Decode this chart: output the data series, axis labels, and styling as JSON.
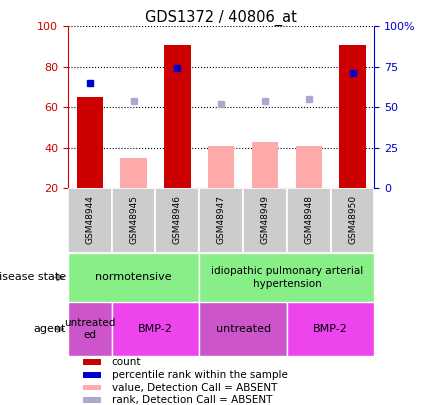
{
  "title": "GDS1372 / 40806_at",
  "samples": [
    "GSM48944",
    "GSM48945",
    "GSM48946",
    "GSM48947",
    "GSM48949",
    "GSM48948",
    "GSM48950"
  ],
  "count_values": [
    65,
    null,
    91,
    null,
    null,
    null,
    91
  ],
  "count_color": "#cc0000",
  "percentile_values": [
    65,
    null,
    74,
    null,
    null,
    null,
    71
  ],
  "percentile_color": "#0000cc",
  "absent_value_values": [
    null,
    35,
    null,
    41,
    43,
    41,
    null
  ],
  "absent_value_color": "#ffaaaa",
  "absent_rank_values": [
    null,
    54,
    null,
    52,
    54,
    55,
    null
  ],
  "absent_rank_color": "#aaaacc",
  "ylim_left": [
    20,
    100
  ],
  "ylim_right": [
    0,
    100
  ],
  "yticks_left": [
    20,
    40,
    60,
    80,
    100
  ],
  "ytick_labels_left": [
    "20",
    "40",
    "60",
    "80",
    "100"
  ],
  "ytick_labels_right": [
    "0",
    "25",
    "50",
    "75",
    "100%"
  ],
  "bar_width": 0.6,
  "sample_box_color": "#cccccc",
  "ds_colors": [
    "#88ee88",
    "#88ee88"
  ],
  "agent_colors": [
    "#cc55cc",
    "#ee44ee",
    "#cc55cc",
    "#ee44ee"
  ],
  "legend_items": [
    {
      "label": "count",
      "color": "#cc0000"
    },
    {
      "label": "percentile rank within the sample",
      "color": "#0000cc"
    },
    {
      "label": "value, Detection Call = ABSENT",
      "color": "#ffaaaa"
    },
    {
      "label": "rank, Detection Call = ABSENT",
      "color": "#aaaacc"
    }
  ]
}
